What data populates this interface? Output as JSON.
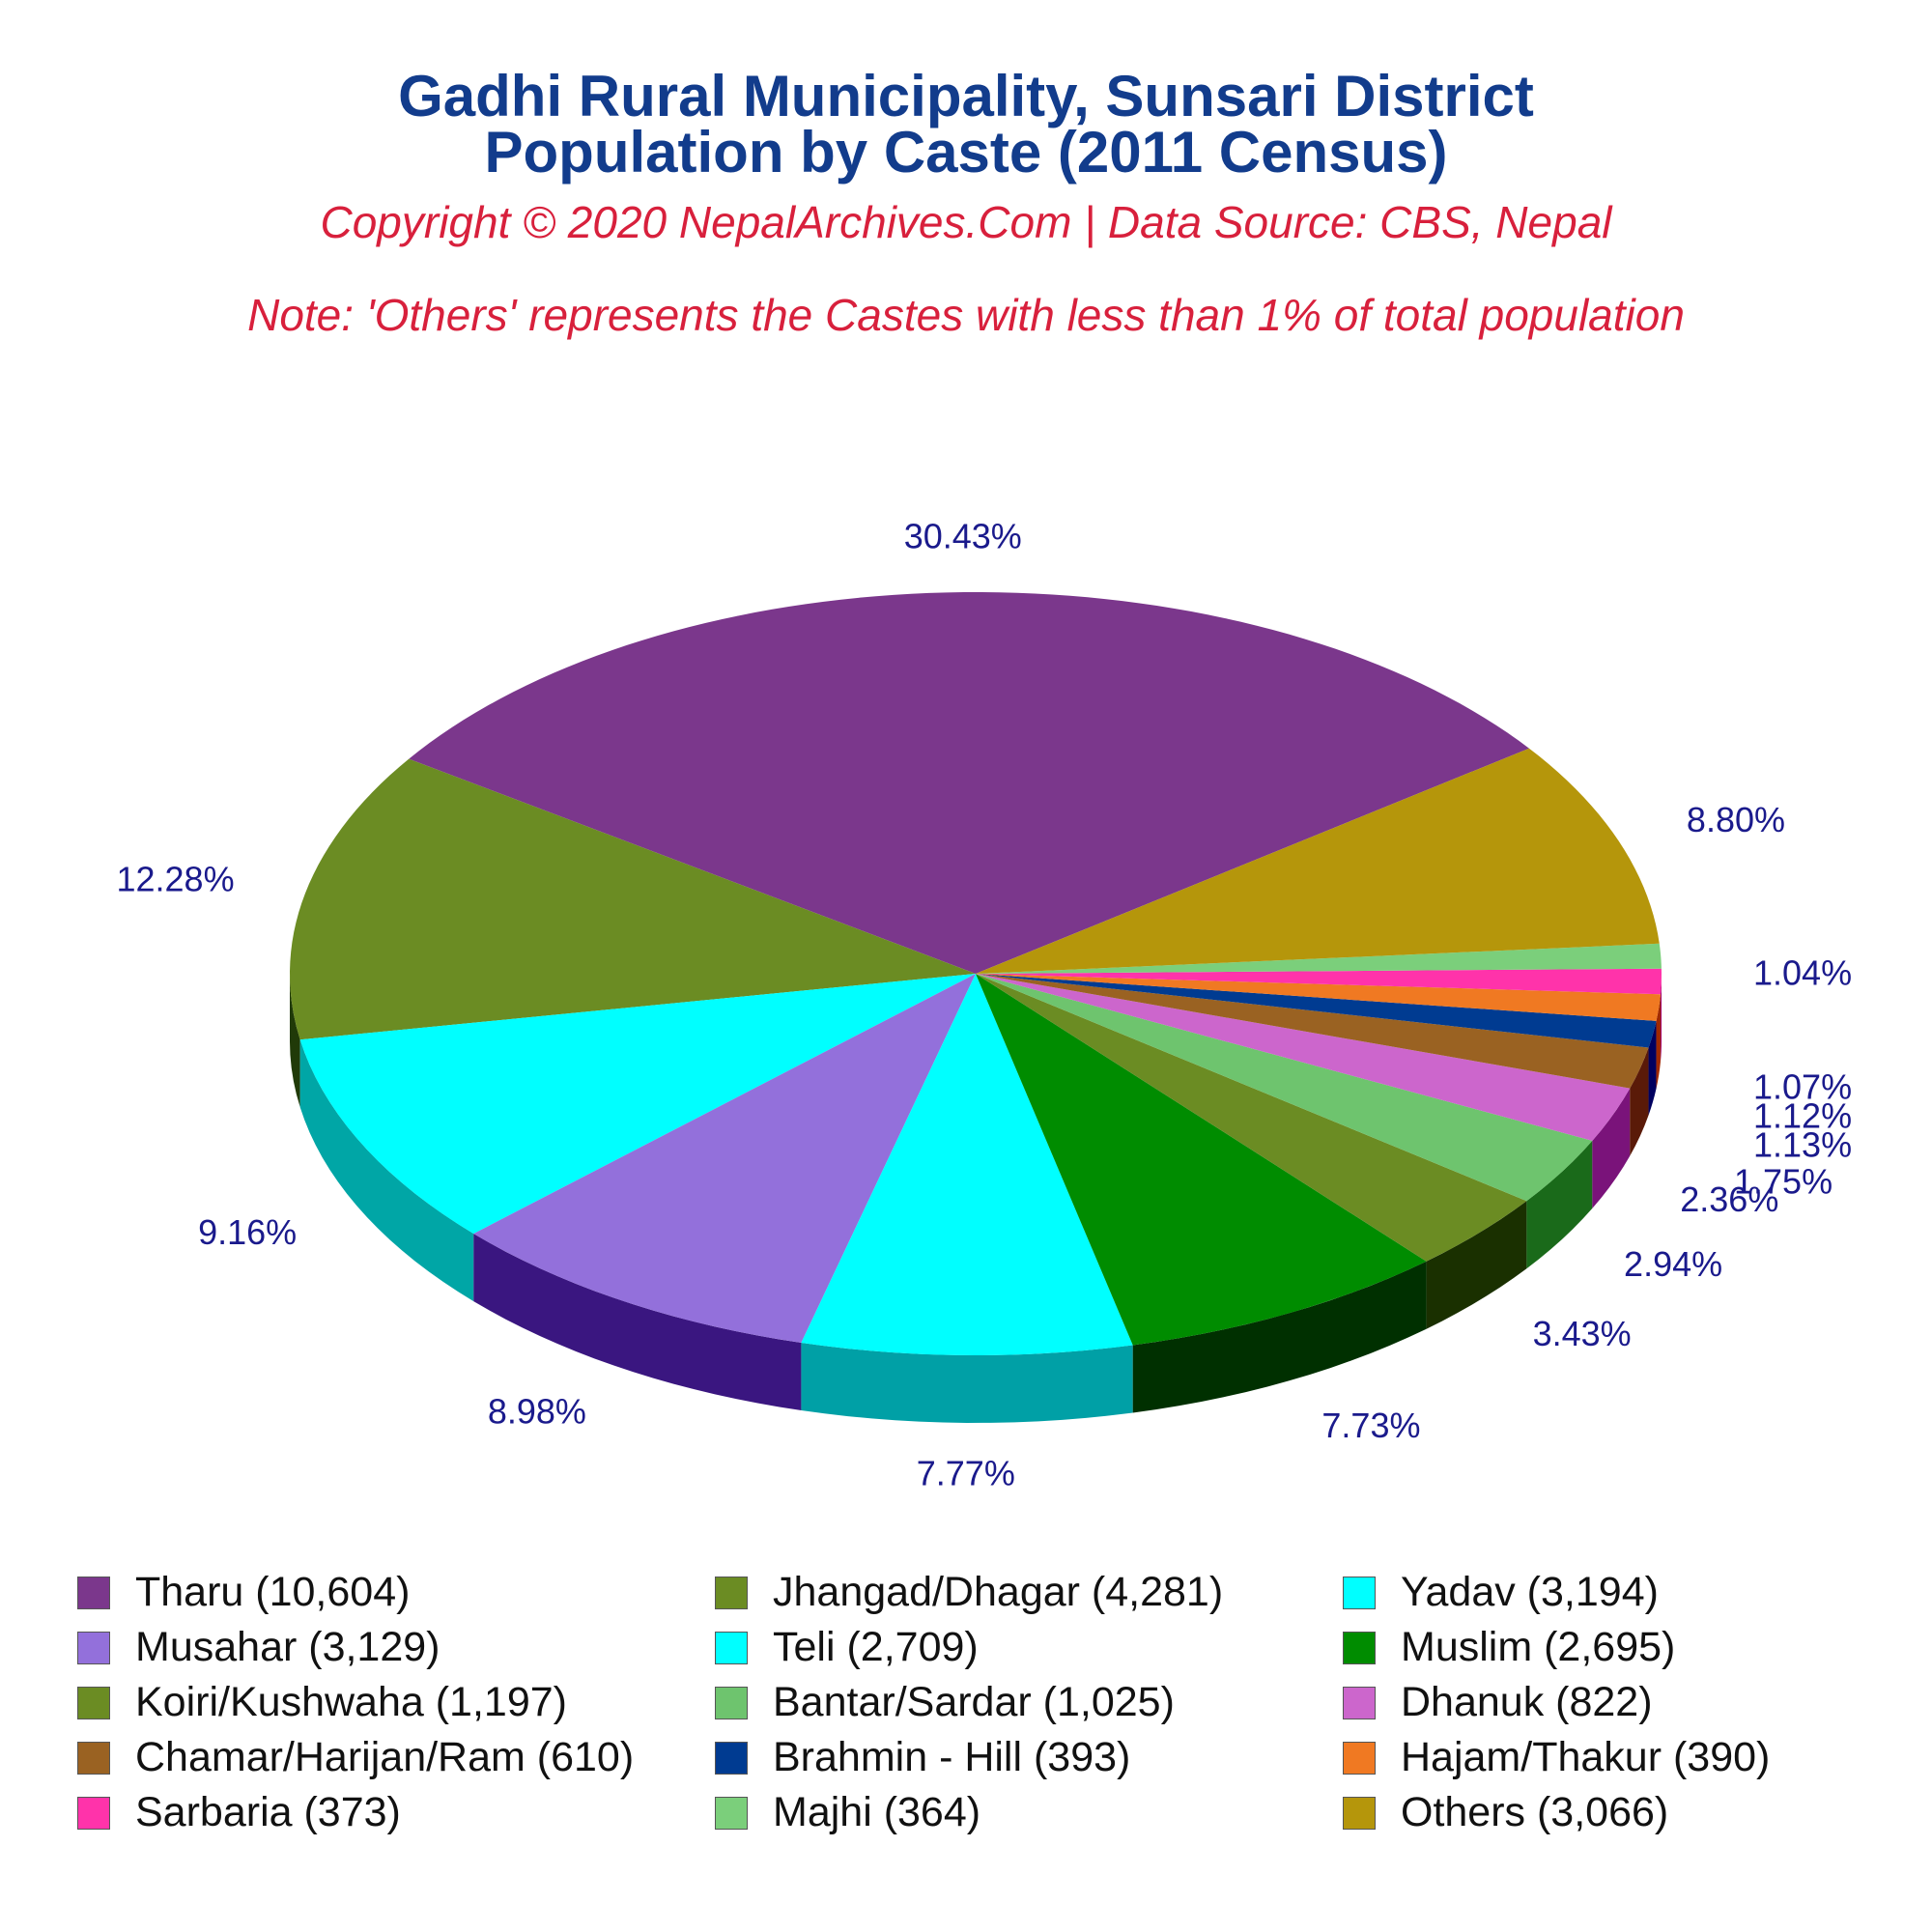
{
  "title_line1": "Gadhi Rural Municipality, Sunsari District",
  "title_line2": "Population by Caste (2011 Census)",
  "copyright": "Copyright © 2020 NepalArchives.Com | Data Source: CBS, Nepal",
  "note": "Note: 'Others' represents the Castes with less than 1% of total population",
  "chart_data": {
    "type": "pie",
    "style": "3d",
    "categories": [
      "Tharu",
      "Jhangad/Dhagar",
      "Yadav",
      "Musahar",
      "Teli",
      "Muslim",
      "Koiri/Kushwaha",
      "Bantar/Sardar",
      "Dhanuk",
      "Chamar/Harijan/Ram",
      "Brahmin - Hill",
      "Hajam/Thakur",
      "Sarbaria",
      "Majhi",
      "Others"
    ],
    "values": [
      10604,
      4281,
      3194,
      3129,
      2709,
      2695,
      1197,
      1025,
      822,
      610,
      393,
      390,
      373,
      364,
      3066
    ],
    "percent_labels": [
      "30.43%",
      "12.28%",
      "9.16%",
      "8.98%",
      "7.77%",
      "7.73%",
      "3.43%",
      "2.94%",
      "2.36%",
      "1.75%",
      "1.13%",
      "1.12%",
      "1.07%",
      "1.04%",
      "8.80%"
    ],
    "colors": [
      "#7b378c",
      "#6b8c23",
      "#00ffff",
      "#9370db",
      "#00ffff",
      "#008c00",
      "#6b8c23",
      "#6ec46e",
      "#cc66cc",
      "#9a6222",
      "#003b91",
      "#f07922",
      "#ff33aa",
      "#7bcf7b",
      "#b5960b"
    ],
    "side_colors": [
      "#4a1a5a",
      "#203a08",
      "#00a6a6",
      "#3a1680",
      "#00a0a6",
      "#003000",
      "#1a3000",
      "#1a6a1a",
      "#7a137a",
      "#5a1a08",
      "#000060",
      "#a02800",
      "#a0006a",
      "#2a7a2a",
      "#7a5a00"
    ],
    "legend": [
      "Tharu (10,604)",
      "Jhangad/Dhagar (4,281)",
      "Yadav (3,194)",
      "Musahar (3,129)",
      "Teli (2,709)",
      "Muslim (2,695)",
      "Koiri/Kushwaha (1,197)",
      "Bantar/Sardar (1,025)",
      "Dhanuk (822)",
      "Chamar/Harijan/Ram (610)",
      "Brahmin - Hill (393)",
      "Hajam/Thakur (390)",
      "Sarbaria (373)",
      "Majhi (364)",
      "Others (3,066)"
    ],
    "legend_position": "bottom"
  }
}
